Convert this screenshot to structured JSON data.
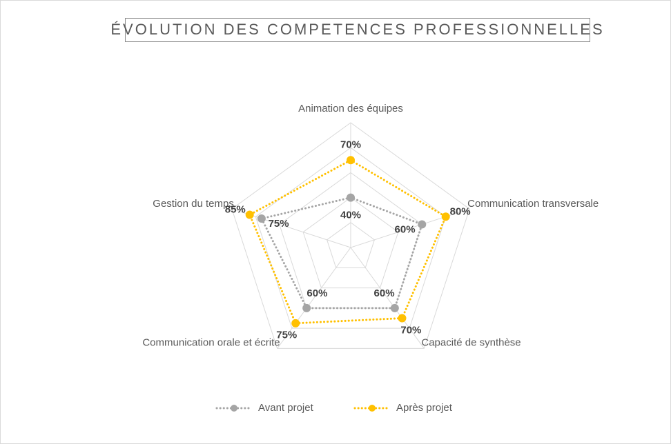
{
  "chart_data": {
    "type": "radar",
    "title": "ÉVOLUTION DES COMPETENCES PROFESSIONNELLES",
    "categories": [
      "Animation des équipes",
      "Communication transversale",
      "Capacité de synthèse",
      "Communication orale et écrite",
      "Gestion du temps"
    ],
    "series": [
      {
        "name": "Avant projet",
        "color": "#a5a5a5",
        "values": [
          40,
          60,
          60,
          60,
          75
        ],
        "value_labels": [
          "40%",
          "60%",
          "60%",
          "60%",
          "75%"
        ]
      },
      {
        "name": "Après projet",
        "color": "#ffc000",
        "values": [
          70,
          80,
          70,
          75,
          85
        ],
        "value_labels": [
          "70%",
          "80%",
          "70%",
          "75%",
          "85%"
        ]
      }
    ],
    "rlim": [
      0,
      100
    ],
    "rticks": [
      20,
      40,
      60,
      80,
      100
    ],
    "grid": true,
    "legend": "bottom"
  }
}
